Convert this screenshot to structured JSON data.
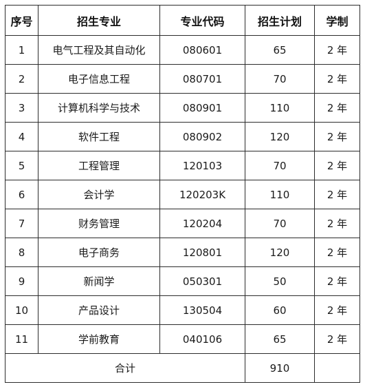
{
  "table": {
    "columns": [
      "序号",
      "招生专业",
      "专业代码",
      "招生计划",
      "学制"
    ],
    "rows": [
      [
        "1",
        "电气工程及其自动化",
        "080601",
        "65",
        "2 年"
      ],
      [
        "2",
        "电子信息工程",
        "080701",
        "70",
        "2 年"
      ],
      [
        "3",
        "计算机科学与技术",
        "080901",
        "110",
        "2 年"
      ],
      [
        "4",
        "软件工程",
        "080902",
        "120",
        "2 年"
      ],
      [
        "5",
        "工程管理",
        "120103",
        "70",
        "2 年"
      ],
      [
        "6",
        "会计学",
        "120203K",
        "110",
        "2 年"
      ],
      [
        "7",
        "财务管理",
        "120204",
        "70",
        "2 年"
      ],
      [
        "8",
        "电子商务",
        "120801",
        "120",
        "2 年"
      ],
      [
        "9",
        "新闻学",
        "050301",
        "50",
        "2 年"
      ],
      [
        "10",
        "产品设计",
        "130504",
        "60",
        "2 年"
      ],
      [
        "11",
        "学前教育",
        "040106",
        "65",
        "2 年"
      ]
    ],
    "total": {
      "label": "合计",
      "value": "910",
      "duration": ""
    }
  }
}
